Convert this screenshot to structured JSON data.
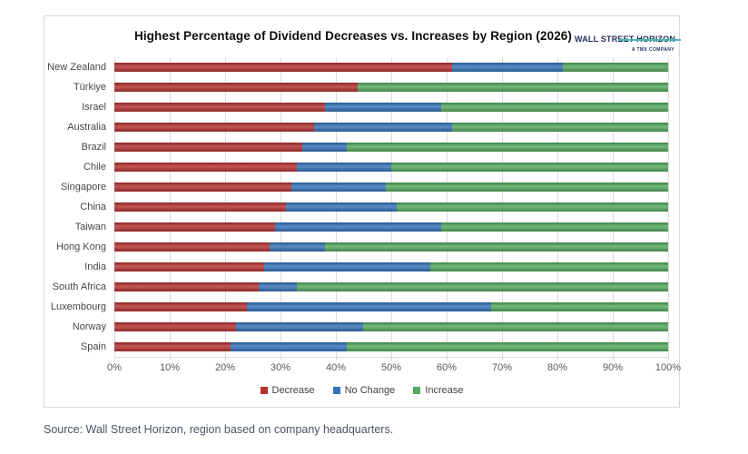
{
  "title": "Highest Percentage of Dividend Decreases vs. Increases by Region (2026)",
  "logo": {
    "brand": "WALL STREET HORIZON",
    "sub": "A TMX COMPANY"
  },
  "source_note": "Source: Wall Street Horizon, region based on company headquarters.",
  "colors": {
    "decrease": "#b53230",
    "no_change": "#3573b9",
    "increase": "#55aa5f"
  },
  "chart_data": {
    "type": "bar",
    "orientation": "horizontal",
    "stacked": true,
    "title": "Highest Percentage of Dividend Decreases vs. Increases by Region (2026)",
    "categories": [
      "New Zealand",
      "Türkiye",
      "Israel",
      "Australia",
      "Brazil",
      "Chile",
      "Singapore",
      "China",
      "Taiwan",
      "Hong Kong",
      "India",
      "South Africa",
      "Luxembourg",
      "Norway",
      "Spain"
    ],
    "series": [
      {
        "name": "Decrease",
        "color": "#b53230",
        "values": [
          61,
          44,
          38,
          36,
          34,
          33,
          32,
          31,
          29,
          28,
          27,
          26,
          24,
          22,
          21
        ]
      },
      {
        "name": "No Change",
        "color": "#3573b9",
        "values": [
          20,
          0,
          21,
          25,
          8,
          17,
          17,
          20,
          30,
          10,
          30,
          7,
          44,
          23,
          21
        ]
      },
      {
        "name": "Increase",
        "color": "#55aa5f",
        "values": [
          19,
          56,
          41,
          39,
          58,
          50,
          51,
          49,
          41,
          62,
          43,
          67,
          32,
          55,
          58
        ]
      }
    ],
    "xlabel": "",
    "ylabel": "",
    "xlim": [
      0,
      100
    ],
    "x_ticks": [
      "0%",
      "10%",
      "20%",
      "30%",
      "40%",
      "50%",
      "60%",
      "70%",
      "80%",
      "90%",
      "100%"
    ],
    "grid": true,
    "legend": [
      "Decrease",
      "No Change",
      "Increase"
    ],
    "legend_position": "bottom"
  }
}
